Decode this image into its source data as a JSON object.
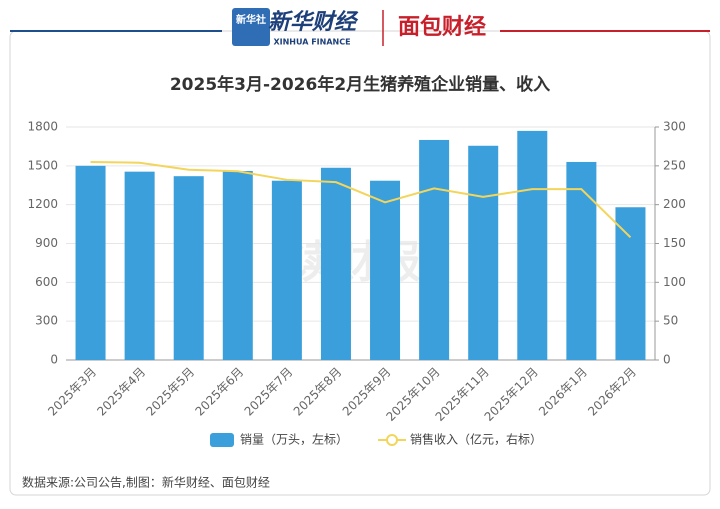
{
  "header": {
    "logo_badge": "新华社",
    "brand": "新华财经",
    "brand_en": "XINHUA FINANCE",
    "partner": "面包财经"
  },
  "watermark": "读财报",
  "source": "数据来源:公司公告,制图：新华财经、面包财经",
  "chart_data": {
    "type": "bar-line",
    "title": "2025年3月-2026年2月生猪养殖企业销量、收入",
    "categories": [
      "2025年3月",
      "2025年4月",
      "2025年5月",
      "2025年6月",
      "2025年7月",
      "2025年8月",
      "2025年9月",
      "2025年10月",
      "2025年11月",
      "2025年12月",
      "2026年1月",
      "2026年2月"
    ],
    "series": [
      {
        "name": "销量（万头，左标）",
        "type": "bar",
        "color": "#3a9fdb",
        "values": [
          1500,
          1455,
          1420,
          1460,
          1385,
          1485,
          1385,
          1700,
          1655,
          1770,
          1530,
          1180
        ]
      },
      {
        "name": "销售收入（亿元，右标）",
        "type": "line",
        "axis": "y2",
        "color": "#f3d55b",
        "values": [
          255,
          254,
          245,
          243,
          232,
          229,
          203,
          221,
          210,
          220,
          220,
          158
        ]
      }
    ],
    "ylim": [
      0,
      1800
    ],
    "yticks": [
      0,
      300,
      600,
      900,
      1200,
      1500,
      1800
    ],
    "y2lim": [
      0,
      300
    ],
    "y2ticks": [
      0,
      50,
      100,
      150,
      200,
      250,
      300
    ],
    "grid": true,
    "legend": "bottom"
  }
}
